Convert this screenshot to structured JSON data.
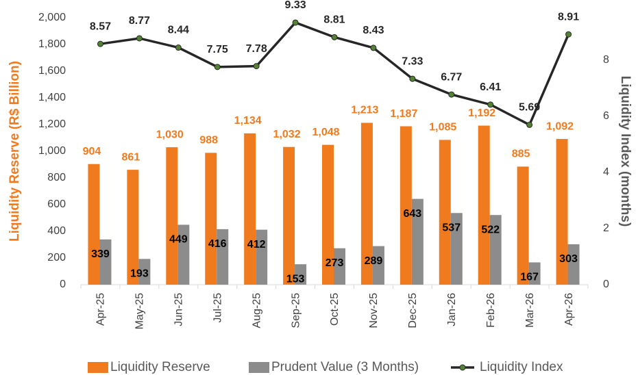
{
  "chart_data": {
    "type": "bar-line",
    "y_label": "Liquidity Reserve (R$ Billion)",
    "y2_label": "Liquidity Index (months)",
    "categories": [
      "Apr-25",
      "May-25",
      "Jun-25",
      "Jul-25",
      "Aug-25",
      "Sep-25",
      "Oct-25",
      "Nov-25",
      "Dec-25",
      "Jan-26",
      "Feb-26",
      "Mar-26",
      "Apr-26"
    ],
    "series": [
      {
        "name": "Liquidity Reserve",
        "type": "bar",
        "color": "#f07a1e",
        "values": [
          904,
          861,
          1030,
          988,
          1134,
          1032,
          1048,
          1213,
          1187,
          1085,
          1192,
          885,
          1092
        ],
        "value_labels": [
          "904",
          "861",
          "1,030",
          "988",
          "1,134",
          "1,032",
          "1,048",
          "1,213",
          "1,187",
          "1,085",
          "1,192",
          "885",
          "1,092"
        ]
      },
      {
        "name": "Prudent Value (3 Months)",
        "type": "bar",
        "color": "#8c8c8c",
        "values": [
          339,
          193,
          449,
          416,
          412,
          153,
          273,
          289,
          643,
          537,
          522,
          167,
          303
        ]
      },
      {
        "name": "Liquidity Index",
        "type": "line",
        "axis": "y2",
        "color": "#262626",
        "marker_color": "#548235",
        "values": [
          8.57,
          8.77,
          8.44,
          7.75,
          7.78,
          9.33,
          8.81,
          8.43,
          7.33,
          6.77,
          6.41,
          5.69,
          8.91
        ]
      }
    ],
    "ylim": [
      0,
      2000
    ],
    "yticks": [
      0,
      200,
      400,
      600,
      800,
      {
        "value": 1000,
        "label": "1,000"
      },
      {
        "value": 1200,
        "label": "1,200"
      },
      {
        "value": 1400,
        "label": "1,400"
      },
      {
        "value": 1600,
        "label": "1,600"
      },
      {
        "value": 1800,
        "label": "1,800"
      },
      {
        "value": 2000,
        "label": "2,000"
      }
    ],
    "y2lim": [
      0,
      9.5
    ],
    "y2ticks": [
      0,
      2,
      4,
      6,
      8
    ],
    "grid": false,
    "legend": "bottom"
  }
}
